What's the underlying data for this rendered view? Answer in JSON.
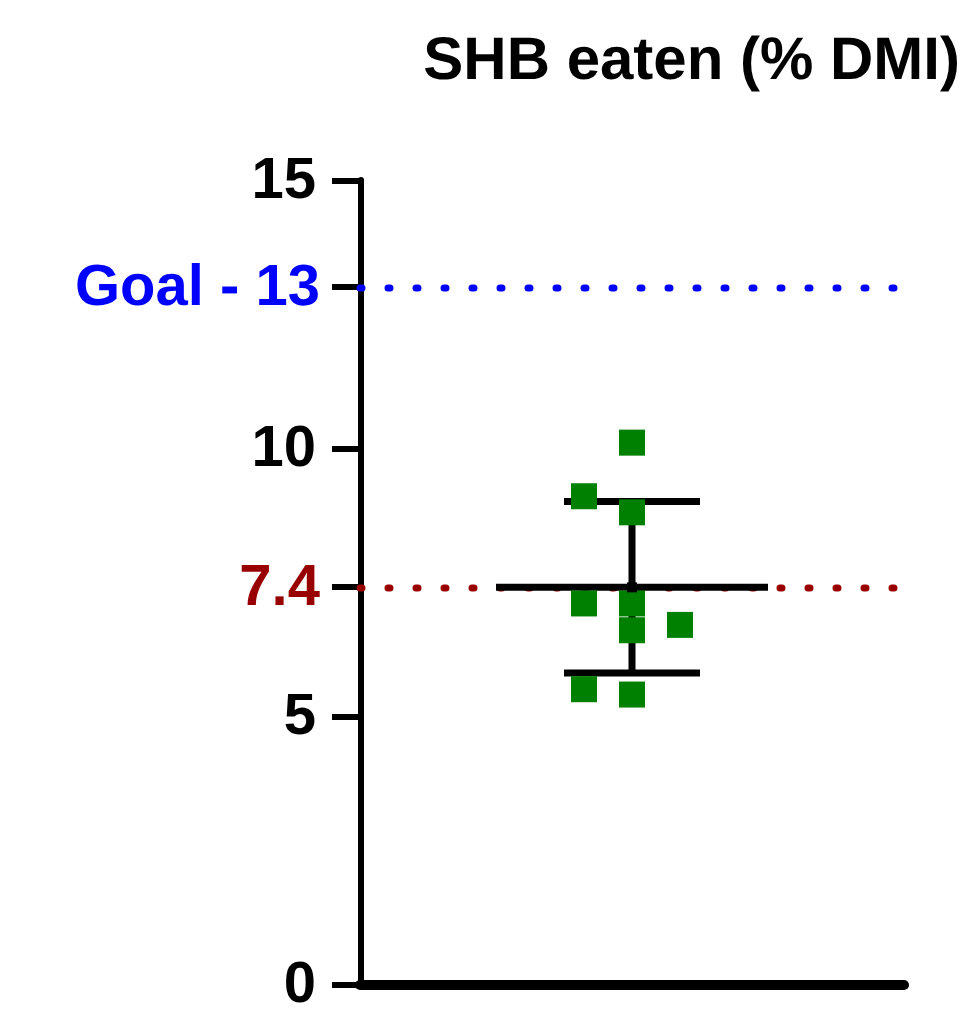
{
  "chart_data": {
    "type": "scatter",
    "title": "SHB eaten (% DMI)",
    "categories": [
      null
    ],
    "series": [
      {
        "x": [
          null,
          null,
          null,
          null,
          null,
          null,
          null,
          null,
          null
        ],
        "values": [
          10.1,
          8.8,
          9.1,
          7.1,
          7.1,
          6.6,
          6.7,
          5.4,
          5.5
        ],
        "color": "#008000"
      },
      {
        "x": [
          null
        ],
        "values": [
          7.4
        ],
        "errors": [
          1.6
        ],
        "color": "#000000"
      }
    ],
    "ylim": [
      0,
      15
    ],
    "yticks": [
      0,
      5,
      10,
      15
    ],
    "ref_lines": [
      {
        "axis": "y",
        "value": 13,
        "label": "Goal - 13",
        "color": "#0000ff",
        "line_style": "dotted"
      },
      {
        "axis": "y",
        "value": 7.4,
        "label": "7.4",
        "color": "#990000",
        "line_style": "dotted"
      }
    ],
    "marker": "square",
    "tick_labels": "y"
  }
}
